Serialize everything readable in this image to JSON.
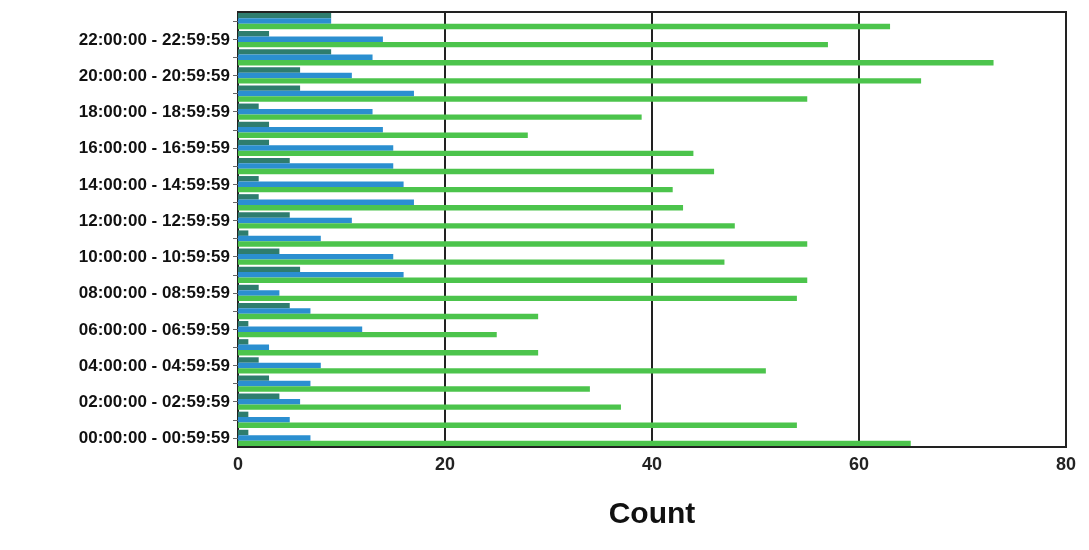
{
  "chart_data": {
    "type": "bar",
    "orientation": "horizontal",
    "xlabel": "Count",
    "categories": [
      null,
      "22:00:00 - 22:59:59",
      null,
      "20:00:00 - 20:59:59",
      null,
      "18:00:00 - 18:59:59",
      null,
      "16:00:00 - 16:59:59",
      null,
      "14:00:00 - 14:59:59",
      null,
      "12:00:00 - 12:59:59",
      null,
      "10:00:00 - 10:59:59",
      null,
      "08:00:00 - 08:59:59",
      null,
      "06:00:00 - 06:59:59",
      null,
      "04:00:00 - 04:59:59",
      null,
      "02:00:00 - 02:59:59",
      null,
      "00:00:00 - 00:59:59"
    ],
    "series": [
      {
        "color": "#2e7d6e",
        "values": [
          9,
          3,
          9,
          6,
          6,
          2,
          3,
          3,
          5,
          2,
          2,
          5,
          1,
          4,
          6,
          2,
          5,
          1,
          1,
          2,
          3,
          4,
          1,
          1
        ]
      },
      {
        "color": "#2b8fd0",
        "values": [
          9,
          14,
          13,
          11,
          17,
          13,
          14,
          15,
          15,
          16,
          17,
          11,
          8,
          15,
          16,
          4,
          7,
          12,
          3,
          8,
          7,
          6,
          5,
          7
        ]
      },
      {
        "color": "#4cc44c",
        "values": [
          63,
          57,
          73,
          66,
          55,
          39,
          28,
          44,
          46,
          42,
          43,
          48,
          55,
          47,
          55,
          54,
          29,
          25,
          29,
          51,
          34,
          37,
          54,
          65
        ]
      }
    ],
    "xlim": [
      0,
      80
    ],
    "xticks": [
      0,
      20,
      40,
      60,
      80
    ],
    "grid": "x"
  }
}
